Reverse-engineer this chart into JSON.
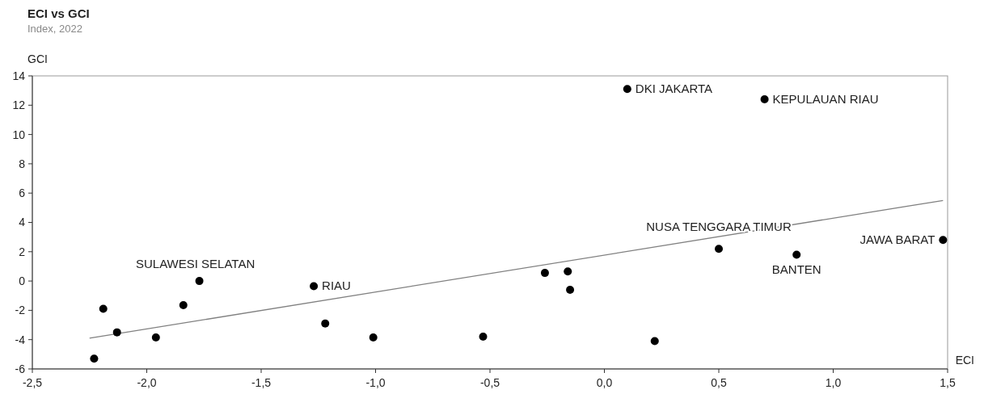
{
  "chart_data": {
    "type": "scatter",
    "title": "ECI vs GCI",
    "subtitle": "Index, 2022",
    "xlabel": "ECI",
    "ylabel": "GCI",
    "xlim": [
      -2.5,
      1.5
    ],
    "ylim": [
      -6,
      14
    ],
    "xticks": [
      {
        "value": -2.5,
        "label": "-2,5"
      },
      {
        "value": -2,
        "label": "-2,0"
      },
      {
        "value": -1.5,
        "label": "-1,5"
      },
      {
        "value": -1,
        "label": "-1,0"
      },
      {
        "value": -0.5,
        "label": "-0,5"
      },
      {
        "value": 0,
        "label": "0,0"
      },
      {
        "value": 0.5,
        "label": "0,5"
      },
      {
        "value": 1,
        "label": "1,0"
      },
      {
        "value": 1.5,
        "label": "1,5"
      }
    ],
    "yticks": [
      -6,
      -4,
      -2,
      0,
      2,
      4,
      6,
      8,
      10,
      12,
      14
    ],
    "grid": false,
    "series": [
      {
        "marker": "circle",
        "color": "#000000",
        "x": [
          -2.23,
          -2.19,
          -2.13,
          -1.96,
          -1.84,
          -1.77,
          -1.27,
          -1.22,
          -1.01,
          -0.53,
          -0.26,
          -0.16,
          -0.15,
          0.1,
          0.22,
          0.5,
          0.7,
          0.84,
          1.48
        ],
        "values": [
          -5.3,
          -1.9,
          -3.5,
          -3.85,
          -1.65,
          0,
          -0.35,
          -2.9,
          -3.85,
          -3.8,
          0.55,
          0.65,
          -0.6,
          13.1,
          -4.1,
          2.2,
          12.4,
          1.8,
          2.8
        ]
      },
      {
        "type": "line",
        "color": "#808080",
        "x": [
          -2.25,
          1.48
        ],
        "values": [
          -3.9,
          5.5
        ]
      }
    ],
    "annotations": [
      {
        "text": "DKI JAKARTA",
        "x": 0.1,
        "y": 13.1
      },
      {
        "text": "KEPULAUAN RIAU",
        "x": 0.7,
        "y": 12.4
      },
      {
        "text": "NUSA TENGGARA TIMUR",
        "x": 0.5,
        "y": 2.2
      },
      {
        "text": "BANTEN",
        "x": 0.84,
        "y": 1.8
      },
      {
        "text": "JAWA BARAT",
        "x": 1.48,
        "y": 2.8
      },
      {
        "text": "SULAWESI SELATAN",
        "x": -1.77,
        "y": 0
      },
      {
        "text": "RIAU",
        "x": -1.27,
        "y": -0.35
      }
    ]
  }
}
